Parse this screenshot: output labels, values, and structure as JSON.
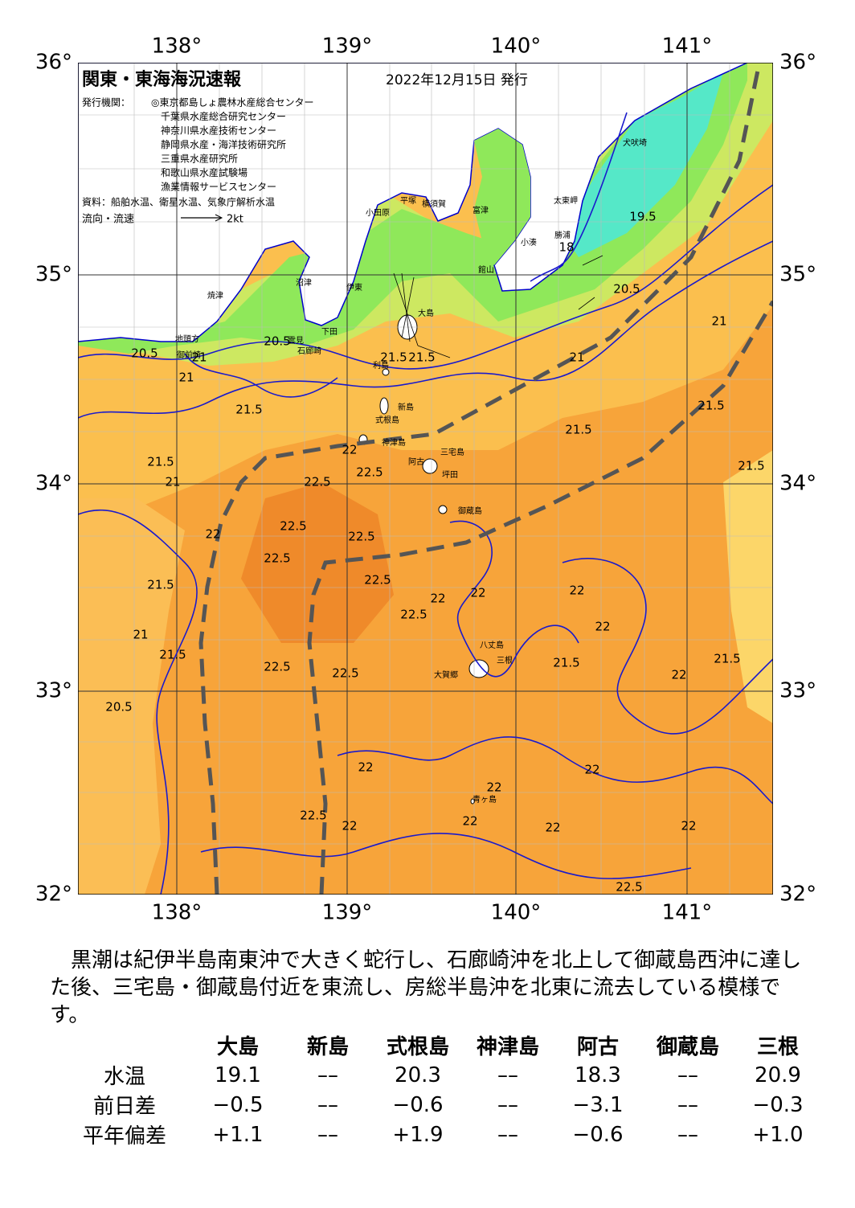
{
  "header": {
    "title": "関東・東海海況速報",
    "date": "2022年12月15日 発行",
    "issuer_label": "発行機関：",
    "issuers": [
      "◎東京都島しょ農林水産総合センター",
      "千葉県水産総合研究センター",
      "神奈川県水産技術センター",
      "静岡県水産・海洋技術研究所",
      "三重県水産研究所",
      "和歌山県水産試験場",
      "漁業情報サービスセンター"
    ],
    "source": "資料：船舶水温、衛星水温、気象庁解析水温",
    "legend_label": "流向・流速",
    "legend_scale": "2kt"
  },
  "map": {
    "lon_labels": [
      "138°",
      "139°",
      "140°",
      "141°"
    ],
    "lat_labels": [
      "36°",
      "35°",
      "34°",
      "33°",
      "32°"
    ],
    "places": [
      "焼津",
      "沼津",
      "伊東",
      "平塚",
      "横須賀",
      "小田原",
      "富津",
      "館山",
      "勝浦",
      "小湊",
      "太東岬",
      "犬吠埼",
      "大島",
      "利島",
      "新島",
      "式根島",
      "神津島",
      "三宅島",
      "阿古",
      "坪田",
      "御蔵島",
      "八丈島",
      "三根",
      "大賀郷",
      "青ヶ島",
      "地頭方",
      "御前崎",
      "石廊崎",
      "下田",
      "雲見"
    ],
    "contours": [
      "21.5",
      "21",
      "21.5",
      "21",
      "22",
      "22.5",
      "22.5",
      "22.5",
      "22.5",
      "22",
      "21.5",
      "22.5",
      "22.5",
      "22.5",
      "22.5",
      "22.5",
      "22",
      "22",
      "22",
      "21.5",
      "21.5",
      "21",
      "21.5",
      "21.5",
      "22",
      "22",
      "22",
      "22",
      "22",
      "22.5",
      "22",
      "22.5",
      "20.5",
      "21",
      "21.5",
      "20.5",
      "19.5",
      "18",
      "20.5",
      "21.5",
      "21.5",
      "21",
      "22",
      "21.5",
      "22",
      "20.5",
      "21",
      "22"
    ]
  },
  "summary": "黒潮は紀伊半島南東沖で大きく蛇行し、石廊崎沖を北上して御蔵島西沖に達した後、三宅島・御蔵島付近を東流し、房総半島沖を北東に流去している模様です。",
  "table": {
    "columns": [
      "大島",
      "新島",
      "式根島",
      "神津島",
      "阿古",
      "御蔵島",
      "三根"
    ],
    "rows": [
      {
        "label": "水温",
        "values": [
          "19.1",
          "––",
          "20.3",
          "––",
          "18.3",
          "––",
          "20.9"
        ]
      },
      {
        "label": "前日差",
        "values": [
          "−0.5",
          "––",
          "−0.6",
          "––",
          "−3.1",
          "––",
          "−0.3"
        ]
      },
      {
        "label": "平年偏差",
        "values": [
          "+1.1",
          "––",
          "+1.9",
          "––",
          "−0.6",
          "––",
          "+1.0"
        ]
      }
    ]
  }
}
